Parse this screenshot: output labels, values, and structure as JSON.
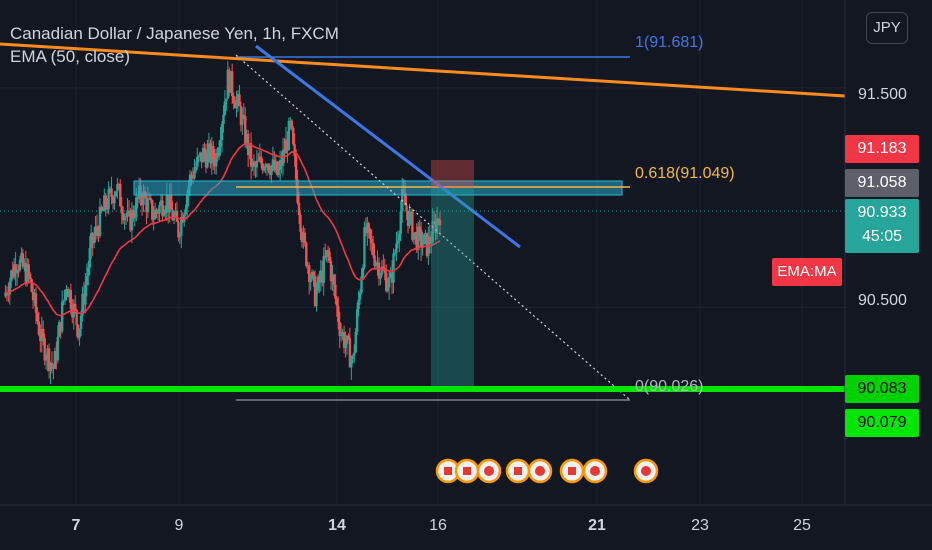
{
  "header": {
    "title": "Canadian Dollar / Japanese Yen, 1h, FXCM",
    "indicator": "EMA (50, close)",
    "currency_button": "JPY"
  },
  "price_axis": {
    "ticks": [
      "91.500",
      "90.500"
    ],
    "badges": {
      "resistance": "91.183",
      "fib": "91.058",
      "last_price": "90.933",
      "countdown": "45:05",
      "support_line": "90.083",
      "support_low": "90.079"
    },
    "ema_tag": "EMA:MA"
  },
  "time_axis": {
    "ticks": [
      "7",
      "9",
      "14",
      "16",
      "21",
      "23",
      "25"
    ]
  },
  "fib_labels": {
    "level_1": "1(91.681)",
    "level_0618": "0.618(91.049)",
    "level_0": "0(90.026)"
  },
  "colors": {
    "background": "#131722",
    "up": "#26a69a",
    "down": "#ef5350",
    "ema": "#f23645",
    "trendline_orange": "#ff8a1e",
    "trendline_blue": "#3b78e7",
    "support_green": "#00e600",
    "fib_zone": "#26a6c4",
    "fib_0618": "#f5b840"
  },
  "chart_data": {
    "type": "candlestick",
    "title": "Canadian Dollar / Japanese Yen, 1h, FXCM",
    "ylim": [
      89.6,
      91.9
    ],
    "x_tick_labels": [
      "7",
      "9",
      "14",
      "16",
      "21",
      "23",
      "25"
    ],
    "close_path": [
      {
        "t": 0,
        "close": 90.55
      },
      {
        "t": 3,
        "close": 90.72
      },
      {
        "t": 6,
        "close": 90.64
      },
      {
        "t": 9,
        "close": 90.35
      },
      {
        "t": 12,
        "close": 90.22
      },
      {
        "t": 15,
        "close": 90.62
      },
      {
        "t": 18,
        "close": 90.4
      },
      {
        "t": 21,
        "close": 90.78
      },
      {
        "t": 24,
        "close": 90.95
      },
      {
        "t": 27,
        "close": 91.05
      },
      {
        "t": 30,
        "close": 90.88
      },
      {
        "t": 33,
        "close": 91.02
      },
      {
        "t": 36,
        "close": 90.92
      },
      {
        "t": 39,
        "close": 91.0
      },
      {
        "t": 42,
        "close": 90.85
      },
      {
        "t": 45,
        "close": 91.1
      },
      {
        "t": 48,
        "close": 91.2
      },
      {
        "t": 51,
        "close": 91.18
      },
      {
        "t": 54,
        "close": 91.55
      },
      {
        "t": 57,
        "close": 91.38
      },
      {
        "t": 60,
        "close": 91.12
      },
      {
        "t": 63,
        "close": 91.18
      },
      {
        "t": 66,
        "close": 91.1
      },
      {
        "t": 69,
        "close": 91.32
      },
      {
        "t": 72,
        "close": 90.8
      },
      {
        "t": 75,
        "close": 90.55
      },
      {
        "t": 78,
        "close": 90.75
      },
      {
        "t": 81,
        "close": 90.4
      },
      {
        "t": 84,
        "close": 90.25
      },
      {
        "t": 87,
        "close": 90.85
      },
      {
        "t": 90,
        "close": 90.7
      },
      {
        "t": 93,
        "close": 90.6
      },
      {
        "t": 96,
        "close": 91.0
      },
      {
        "t": 99,
        "close": 90.82
      },
      {
        "t": 102,
        "close": 90.78
      },
      {
        "t": 105,
        "close": 90.933
      }
    ],
    "ema50_last": 90.9,
    "fib_levels": [
      {
        "ratio": 1,
        "price": 91.681
      },
      {
        "ratio": 0.618,
        "price": 91.049
      },
      {
        "ratio": 0,
        "price": 90.026
      }
    ],
    "horizontal_lines": [
      90.083
    ],
    "last_price": 90.933,
    "axis_labels": [
      91.183,
      91.058,
      90.933,
      90.083,
      90.079
    ]
  }
}
